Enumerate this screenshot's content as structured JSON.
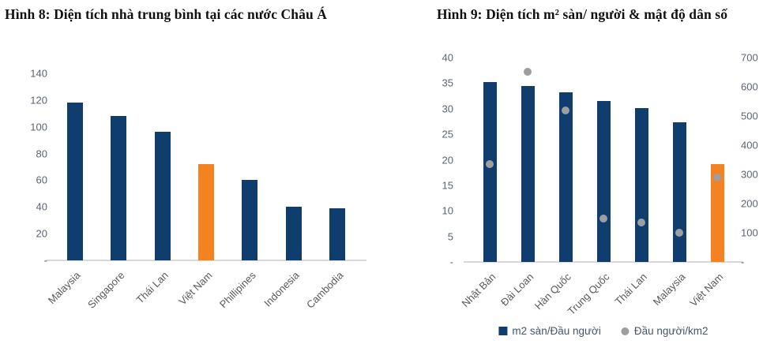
{
  "figures": [
    {
      "title": "Hình 8: Diện tích nhà trung bình tại các nước Châu Á"
    },
    {
      "title": "Hình 9: Diện tích m² sàn/ người & mật độ dân số"
    }
  ],
  "colors": {
    "bar_navy": "#0E3D6E",
    "bar_orange": "#F58220",
    "dot_gray": "#9E9E9E",
    "baseline": "#D9D9D9",
    "tick_text": "#5A6472",
    "xlabel_text": "#595959",
    "legend_text": "#44546A"
  },
  "chart_data": [
    {
      "type": "bar",
      "title": "Hình 8: Diện tích nhà trung bình tại các nước Châu Á",
      "categories": [
        "Malaysia",
        "Singapore",
        "Thái Lan",
        "Việt Nam",
        "Phillipines",
        "Indonesia",
        "Cambodia"
      ],
      "values": [
        118,
        108,
        96,
        72,
        60,
        40,
        39
      ],
      "highlight_index": 3,
      "ylim": [
        0,
        140
      ],
      "yticks": [
        140,
        120,
        100,
        80,
        60,
        40,
        20
      ],
      "zero_tick_label": "-",
      "grid": false,
      "legend_position": "none",
      "xlabel": "",
      "ylabel": ""
    },
    {
      "type": "bar+scatter",
      "title": "Hình 9: Diện tích m² sàn/ người & mật độ dân số",
      "categories": [
        "Nhật Bản",
        "Đài Loan",
        "Hàn Quốc",
        "Trung Quốc",
        "Thái Lan",
        "Malaysia",
        "Việt Nam"
      ],
      "series": [
        {
          "name": "m2 sàn/Đầu người",
          "type": "bar",
          "axis": "left",
          "values": [
            35.2,
            34.4,
            33.2,
            31.5,
            30.1,
            27.3,
            19.2
          ]
        },
        {
          "name": "Đầu người/km2",
          "type": "scatter",
          "axis": "right",
          "values": [
            336,
            652,
            518,
            150,
            135,
            100,
            290
          ]
        }
      ],
      "highlight_index": 6,
      "left_axis": {
        "lim": [
          0,
          40
        ],
        "ticks": [
          40,
          35,
          30,
          25,
          20,
          15,
          10,
          5
        ]
      },
      "right_axis": {
        "lim": [
          0,
          700
        ],
        "ticks": [
          700,
          600,
          500,
          400,
          300,
          200,
          100
        ]
      },
      "zero_tick_label": "-",
      "grid": false,
      "legend_position": "bottom",
      "xlabel": "",
      "ylabel": ""
    }
  ]
}
